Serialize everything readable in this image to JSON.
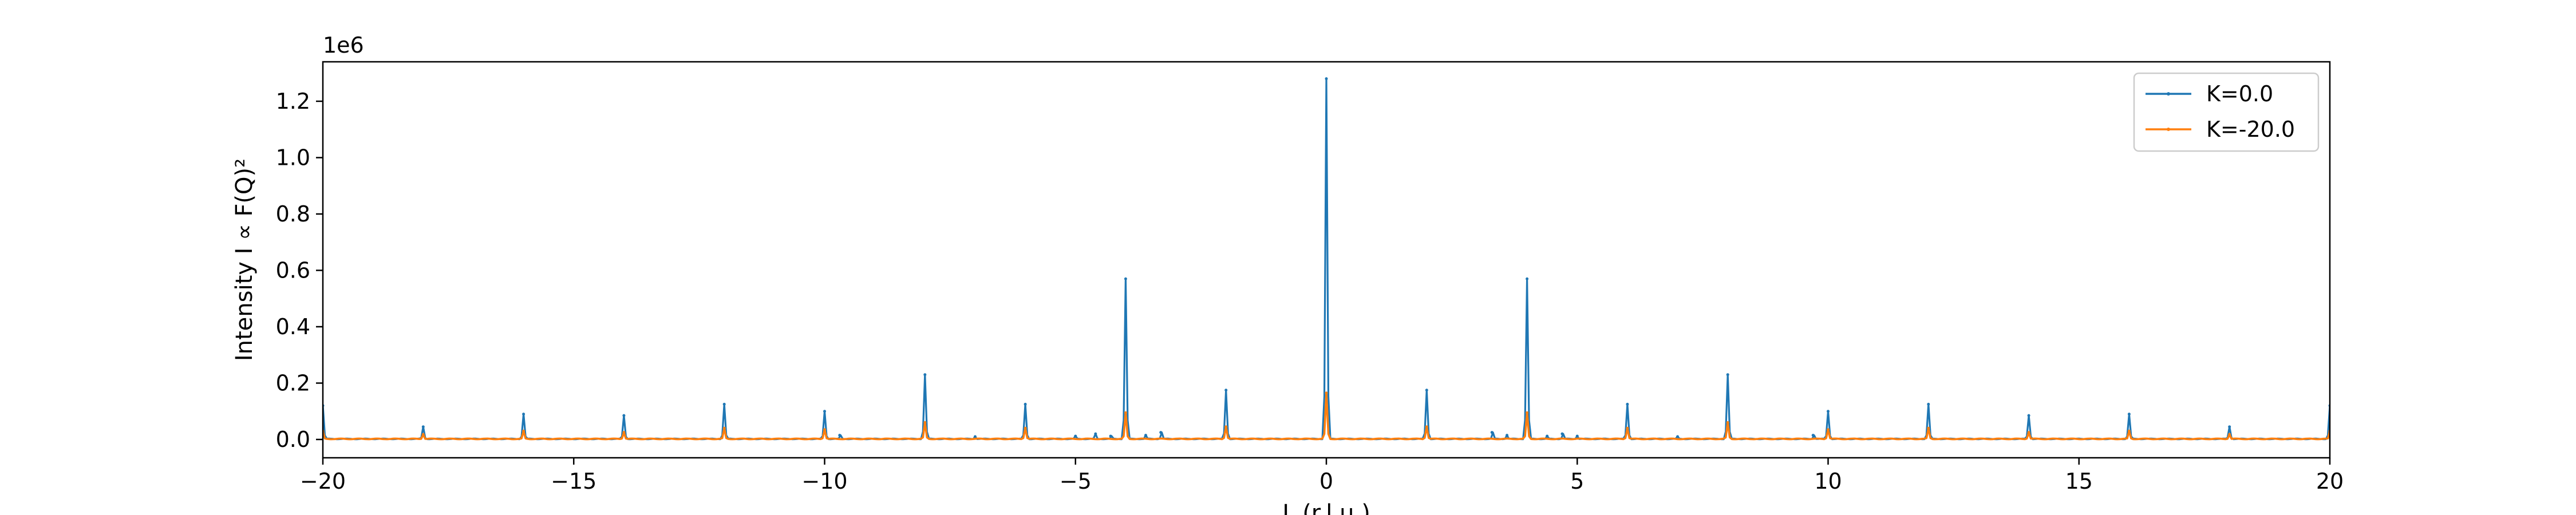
{
  "chart_data": {
    "type": "line",
    "xlabel": "L (r.l.u.)",
    "ylabel": "Intensity I ∝ F(Q)²",
    "y_offset_label": "1e6",
    "xlim": [
      -20,
      20
    ],
    "ylim": [
      -0.065,
      1.34
    ],
    "xticks": [
      -20,
      -15,
      -10,
      -5,
      0,
      5,
      10,
      15,
      20
    ],
    "xtick_labels": [
      "−20",
      "−15",
      "−10",
      "−5",
      "0",
      "5",
      "10",
      "15",
      "20"
    ],
    "yticks": [
      0.0,
      0.2,
      0.4,
      0.6,
      0.8,
      1.0,
      1.2
    ],
    "ytick_labels": [
      "0.0",
      "0.2",
      "0.4",
      "0.6",
      "0.8",
      "1.0",
      "1.2"
    ],
    "legend_position": "upper-right",
    "series": [
      {
        "name": "K=0.0",
        "color": "#1f77b4",
        "peaks": [
          {
            "x": -20,
            "y": 0.12
          },
          {
            "x": -18,
            "y": 0.045
          },
          {
            "x": -16,
            "y": 0.09
          },
          {
            "x": -14,
            "y": 0.085
          },
          {
            "x": -12,
            "y": 0.125
          },
          {
            "x": -10,
            "y": 0.1
          },
          {
            "x": -9.7,
            "y": 0.015
          },
          {
            "x": -8,
            "y": 0.23
          },
          {
            "x": -7,
            "y": 0.01
          },
          {
            "x": -6,
            "y": 0.125
          },
          {
            "x": -5,
            "y": 0.012
          },
          {
            "x": -4.6,
            "y": 0.02
          },
          {
            "x": -4.3,
            "y": 0.012
          },
          {
            "x": -4,
            "y": 0.57
          },
          {
            "x": -3.6,
            "y": 0.015
          },
          {
            "x": -3.3,
            "y": 0.025
          },
          {
            "x": -2,
            "y": 0.175
          },
          {
            "x": 0,
            "y": 1.28
          },
          {
            "x": 2,
            "y": 0.175
          },
          {
            "x": 3.3,
            "y": 0.025
          },
          {
            "x": 3.6,
            "y": 0.015
          },
          {
            "x": 4,
            "y": 0.57
          },
          {
            "x": 4.4,
            "y": 0.012
          },
          {
            "x": 4.7,
            "y": 0.02
          },
          {
            "x": 5,
            "y": 0.012
          },
          {
            "x": 6,
            "y": 0.125
          },
          {
            "x": 7,
            "y": 0.01
          },
          {
            "x": 8,
            "y": 0.23
          },
          {
            "x": 9.7,
            "y": 0.015
          },
          {
            "x": 10,
            "y": 0.1
          },
          {
            "x": 12,
            "y": 0.125
          },
          {
            "x": 14,
            "y": 0.085
          },
          {
            "x": 16,
            "y": 0.09
          },
          {
            "x": 18,
            "y": 0.045
          },
          {
            "x": 20,
            "y": 0.12
          }
        ]
      },
      {
        "name": "K=-20.0",
        "color": "#ff7f0e",
        "peaks": [
          {
            "x": -20,
            "y": 0.03
          },
          {
            "x": -18,
            "y": 0.018
          },
          {
            "x": -16,
            "y": 0.03
          },
          {
            "x": -14,
            "y": 0.025
          },
          {
            "x": -12,
            "y": 0.04
          },
          {
            "x": -10,
            "y": 0.035
          },
          {
            "x": -8,
            "y": 0.06
          },
          {
            "x": -6,
            "y": 0.04
          },
          {
            "x": -4,
            "y": 0.095
          },
          {
            "x": -2,
            "y": 0.045
          },
          {
            "x": 0,
            "y": 0.165
          },
          {
            "x": 2,
            "y": 0.045
          },
          {
            "x": 4,
            "y": 0.095
          },
          {
            "x": 6,
            "y": 0.04
          },
          {
            "x": 8,
            "y": 0.06
          },
          {
            "x": 10,
            "y": 0.035
          },
          {
            "x": 12,
            "y": 0.04
          },
          {
            "x": 14,
            "y": 0.025
          },
          {
            "x": 16,
            "y": 0.03
          },
          {
            "x": 18,
            "y": 0.018
          },
          {
            "x": 20,
            "y": 0.03
          }
        ]
      }
    ]
  }
}
